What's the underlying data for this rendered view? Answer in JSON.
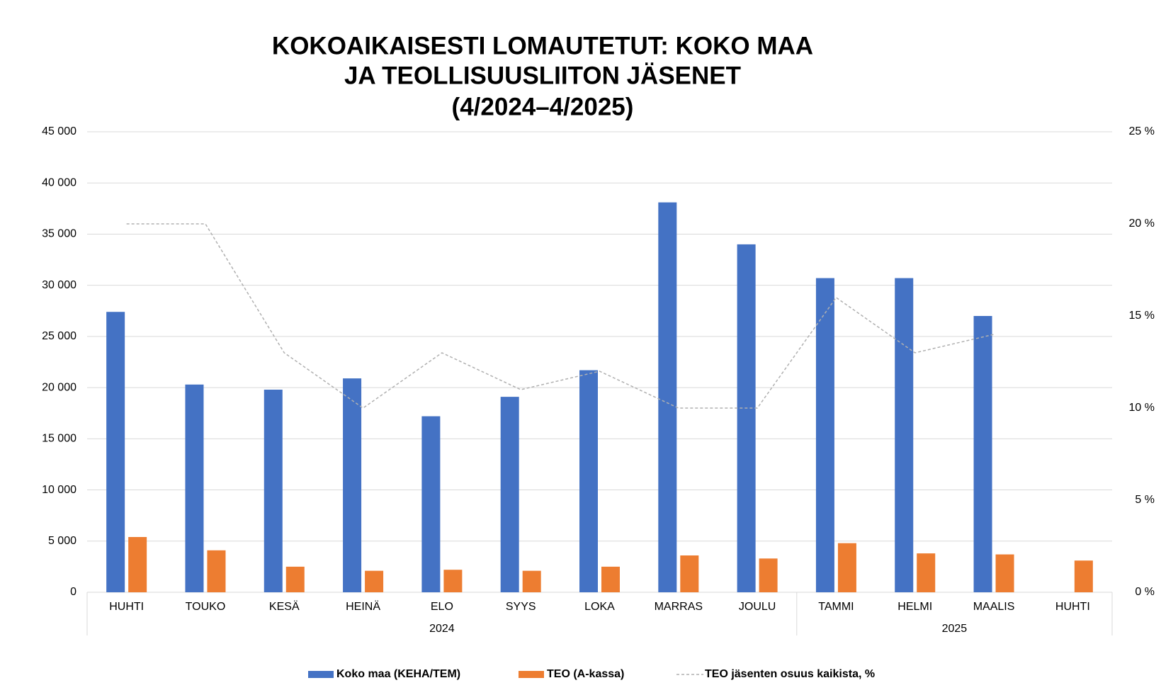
{
  "chart_data": {
    "type": "bar",
    "title": [
      "KOKOAIKAISESTI LOMAUTETUT: KOKO MAA",
      "JA TEOLLISUUSLIITON JÄSENET",
      "(4/2024–4/2025)"
    ],
    "categories": [
      "HUHTI",
      "TOUKO",
      "KESÄ",
      "HEINÄ",
      "ELO",
      "SYYS",
      "LOKA",
      "MARRAS",
      "JOULU",
      "TAMMI",
      "HELMI",
      "MAALIS",
      "HUHTI"
    ],
    "year_groups": [
      {
        "label": "2024",
        "count": 9
      },
      {
        "label": "2025",
        "count": 4
      }
    ],
    "series": [
      {
        "name": "Koko maa (KEHA/TEM)",
        "color": "#4472c4",
        "type": "bar",
        "values": [
          27400,
          20300,
          19800,
          20900,
          17200,
          19100,
          21700,
          38100,
          34000,
          30700,
          30700,
          27000,
          null
        ]
      },
      {
        "name": "TEO (A-kassa)",
        "color": "#ed7d31",
        "type": "bar",
        "values": [
          5400,
          4100,
          2500,
          2100,
          2200,
          2100,
          2500,
          3600,
          3300,
          4800,
          3800,
          3700,
          3100
        ]
      },
      {
        "name": "TEO jäsenten osuus kaikista, %",
        "color": "#b0b0b0",
        "type": "line",
        "dashed": true,
        "axis": "y2",
        "values": [
          20,
          20,
          13,
          10,
          13,
          11,
          12,
          10,
          10,
          16,
          13,
          14,
          null
        ]
      }
    ],
    "ylim": [
      0,
      45000
    ],
    "yticks": [
      0,
      {
        "value": 5000,
        "label": "5 000"
      },
      {
        "value": 10000,
        "label": "10 000"
      },
      {
        "value": 15000,
        "label": "15 000"
      },
      {
        "value": 20000,
        "label": "20 000"
      },
      {
        "value": 25000,
        "label": "25 000"
      },
      {
        "value": 30000,
        "label": "30 000"
      },
      {
        "value": 35000,
        "label": "35 000"
      },
      {
        "value": 40000,
        "label": "40 000"
      },
      {
        "value": 45000,
        "label": "45 000"
      }
    ],
    "y2lim": [
      0,
      25
    ],
    "y2ticks": [
      {
        "value": 0,
        "label": "0 %"
      },
      {
        "value": 5,
        "label": "5 %"
      },
      {
        "value": 10,
        "label": "10 %"
      },
      {
        "value": 15,
        "label": "15 %"
      },
      {
        "value": 20,
        "label": "20 %"
      },
      {
        "value": 25,
        "label": "25 %"
      }
    ],
    "grid": true,
    "legend": "bottom"
  }
}
